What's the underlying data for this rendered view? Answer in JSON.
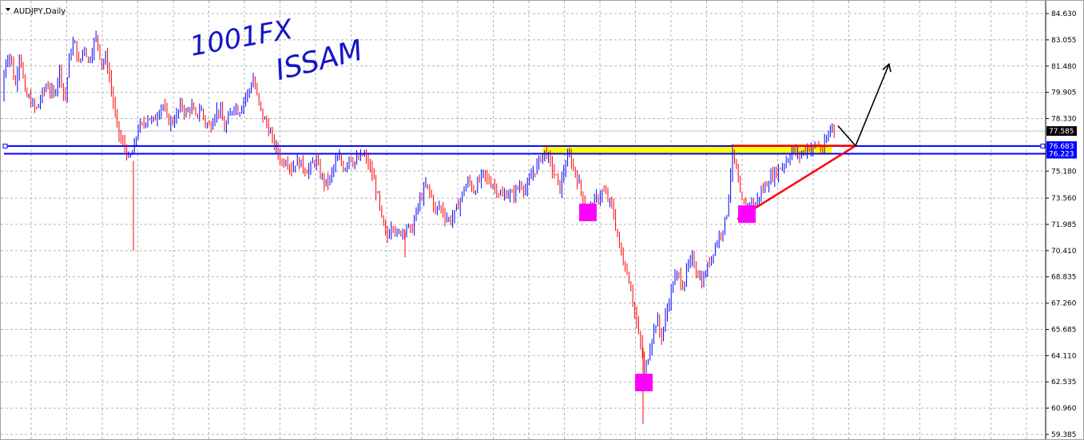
{
  "window": {
    "title": "AUDJPY,Daily",
    "dropdown_icon": "triangle-down-icon"
  },
  "chart_data": {
    "type": "candlestick",
    "symbol": "AUDJPY",
    "timeframe": "Daily",
    "ylim": [
      59.385,
      84.63
    ],
    "y_ticks": [
      "84.630",
      "83.055",
      "81.480",
      "79.905",
      "78.330",
      "75.180",
      "73.560",
      "71.985",
      "70.410",
      "68.835",
      "67.260",
      "65.685",
      "64.110",
      "62.535",
      "60.960",
      "59.385"
    ],
    "grid": true,
    "price_labels": [
      {
        "value": "77.585",
        "color": "#000000"
      },
      {
        "value": "76.683",
        "color": "#0000ff"
      },
      {
        "value": "76.223",
        "color": "#0000ff"
      }
    ],
    "bull_color": "#0000ff",
    "bear_color": "#ff0000",
    "close_path": [
      [
        0,
        79.4
      ],
      [
        6,
        81.8
      ],
      [
        12,
        82.2
      ],
      [
        18,
        80.2
      ],
      [
        24,
        82.5
      ],
      [
        30,
        79.8
      ],
      [
        36,
        79.5
      ],
      [
        44,
        78.8
      ],
      [
        52,
        79.8
      ],
      [
        58,
        80.4
      ],
      [
        66,
        79.6
      ],
      [
        74,
        81.4
      ],
      [
        80,
        79.3
      ],
      [
        86,
        82.1
      ],
      [
        92,
        83.0
      ],
      [
        98,
        81.5
      ],
      [
        104,
        82.8
      ],
      [
        110,
        81.7
      ],
      [
        116,
        82.8
      ],
      [
        120,
        83.3
      ],
      [
        126,
        81.6
      ],
      [
        132,
        82.0
      ],
      [
        138,
        80.2
      ],
      [
        144,
        78.2
      ],
      [
        150,
        77.0
      ],
      [
        156,
        76.6
      ],
      [
        160,
        75.8
      ],
      [
        166,
        76.4
      ],
      [
        172,
        77.8
      ],
      [
        178,
        77.9
      ],
      [
        184,
        78.5
      ],
      [
        190,
        78.1
      ],
      [
        196,
        78.6
      ],
      [
        202,
        79.3
      ],
      [
        208,
        78.3
      ],
      [
        214,
        78.1
      ],
      [
        220,
        78.5
      ],
      [
        226,
        79.2
      ],
      [
        232,
        78.6
      ],
      [
        238,
        79.1
      ],
      [
        244,
        78.4
      ],
      [
        250,
        79.0
      ],
      [
        256,
        78.1
      ],
      [
        262,
        77.8
      ],
      [
        268,
        78.7
      ],
      [
        274,
        78.9
      ],
      [
        280,
        77.7
      ],
      [
        286,
        78.4
      ],
      [
        292,
        79.2
      ],
      [
        298,
        78.7
      ],
      [
        304,
        79.5
      ],
      [
        310,
        79.9
      ],
      [
        316,
        80.7
      ],
      [
        322,
        79.4
      ],
      [
        328,
        78.4
      ],
      [
        334,
        77.9
      ],
      [
        340,
        77.0
      ],
      [
        346,
        76.4
      ],
      [
        352,
        75.7
      ],
      [
        358,
        75.9
      ],
      [
        364,
        75.3
      ],
      [
        370,
        75.8
      ],
      [
        376,
        75.6
      ],
      [
        382,
        75.2
      ],
      [
        388,
        75.4
      ],
      [
        394,
        75.9
      ],
      [
        400,
        75.0
      ],
      [
        406,
        74.4
      ],
      [
        412,
        74.7
      ],
      [
        418,
        75.6
      ],
      [
        424,
        75.9
      ],
      [
        430,
        75.3
      ],
      [
        436,
        76.1
      ],
      [
        442,
        75.7
      ],
      [
        448,
        75.9
      ],
      [
        454,
        76.2
      ],
      [
        460,
        75.6
      ],
      [
        466,
        74.8
      ],
      [
        472,
        73.6
      ],
      [
        478,
        71.9
      ],
      [
        484,
        71.2
      ],
      [
        490,
        72.2
      ],
      [
        496,
        71.3
      ],
      [
        502,
        71.6
      ],
      [
        508,
        71.9
      ],
      [
        514,
        71.5
      ],
      [
        520,
        72.7
      ],
      [
        526,
        73.6
      ],
      [
        532,
        74.3
      ],
      [
        538,
        73.8
      ],
      [
        544,
        72.8
      ],
      [
        550,
        73.1
      ],
      [
        556,
        72.5
      ],
      [
        562,
        72.2
      ],
      [
        568,
        72.6
      ],
      [
        574,
        73.3
      ],
      [
        580,
        74.1
      ],
      [
        586,
        74.6
      ],
      [
        592,
        74.0
      ],
      [
        598,
        74.5
      ],
      [
        604,
        75.0
      ],
      [
        610,
        74.6
      ],
      [
        616,
        74.4
      ],
      [
        622,
        74.0
      ],
      [
        628,
        73.6
      ],
      [
        634,
        73.9
      ],
      [
        640,
        73.7
      ],
      [
        646,
        74.1
      ],
      [
        652,
        74.4
      ],
      [
        658,
        74.0
      ],
      [
        664,
        74.9
      ],
      [
        670,
        75.4
      ],
      [
        676,
        76.0
      ],
      [
        682,
        76.4
      ],
      [
        688,
        75.6
      ],
      [
        694,
        74.9
      ],
      [
        700,
        74.1
      ],
      [
        706,
        75.5
      ],
      [
        712,
        76.1
      ],
      [
        718,
        75.2
      ],
      [
        724,
        74.4
      ],
      [
        730,
        73.3
      ],
      [
        736,
        72.7
      ],
      [
        742,
        73.3
      ],
      [
        748,
        73.6
      ],
      [
        754,
        74.0
      ],
      [
        760,
        73.5
      ],
      [
        766,
        72.9
      ],
      [
        770,
        71.8
      ],
      [
        776,
        70.3
      ],
      [
        782,
        69.4
      ],
      [
        788,
        68.4
      ],
      [
        794,
        66.6
      ],
      [
        798,
        65.4
      ],
      [
        802,
        64.6
      ],
      [
        806,
        63.0
      ],
      [
        810,
        64.0
      ],
      [
        814,
        65.0
      ],
      [
        818,
        65.8
      ],
      [
        822,
        66.3
      ],
      [
        826,
        65.1
      ],
      [
        830,
        65.9
      ],
      [
        836,
        67.3
      ],
      [
        842,
        68.6
      ],
      [
        848,
        69.0
      ],
      [
        854,
        68.3
      ],
      [
        860,
        69.4
      ],
      [
        866,
        69.9
      ],
      [
        872,
        69.1
      ],
      [
        878,
        68.5
      ],
      [
        884,
        69.3
      ],
      [
        890,
        70.2
      ],
      [
        896,
        70.9
      ],
      [
        902,
        71.6
      ],
      [
        908,
        72.3
      ],
      [
        912,
        74.3
      ],
      [
        916,
        76.2
      ],
      [
        920,
        75.4
      ],
      [
        926,
        73.5
      ],
      [
        932,
        72.9
      ],
      [
        938,
        73.4
      ],
      [
        944,
        73.1
      ],
      [
        950,
        73.8
      ],
      [
        956,
        74.2
      ],
      [
        962,
        74.7
      ],
      [
        968,
        75.0
      ],
      [
        974,
        75.3
      ],
      [
        980,
        75.6
      ],
      [
        986,
        76.0
      ],
      [
        992,
        76.5
      ],
      [
        998,
        76.1
      ],
      [
        1004,
        76.3
      ],
      [
        1010,
        76.6
      ],
      [
        1016,
        76.5
      ],
      [
        1022,
        76.8
      ],
      [
        1028,
        76.4
      ],
      [
        1034,
        77.0
      ],
      [
        1040,
        78.0
      ],
      [
        1044,
        77.6
      ]
    ],
    "spikes": [
      {
        "x": 166,
        "low": 70.4
      },
      {
        "x": 506,
        "low": 70.0
      },
      {
        "x": 804,
        "low": 60.0
      }
    ],
    "annotations": {
      "handwriting": [
        "1001FX",
        "ISSAM"
      ],
      "levels": [
        76.683,
        76.223
      ],
      "current_price_line": 77.585,
      "supply_zone": {
        "from_x": 678,
        "to_x": 1040,
        "top": 76.75,
        "bottom": 76.2,
        "color": "#ffff00"
      },
      "pattern": "ascending-triangle",
      "triangle": {
        "apex": [
          1070,
          76.7
        ],
        "top_left": [
          916,
          76.7
        ],
        "bottom_left": [
          922,
          72.3
        ],
        "color": "#ff0000"
      },
      "markers": [
        {
          "x": 735,
          "value": 72.7,
          "color": "#ff00ff"
        },
        {
          "x": 805,
          "value": 62.5,
          "color": "#ff00ff"
        },
        {
          "x": 934,
          "value": 72.6,
          "color": "#ff00ff"
        }
      ],
      "projection_arrow": {
        "from": [
          1048,
          77.9
        ],
        "via": [
          1070,
          76.7
        ],
        "to": [
          1112,
          81.6
        ],
        "color": "#000000"
      }
    }
  }
}
